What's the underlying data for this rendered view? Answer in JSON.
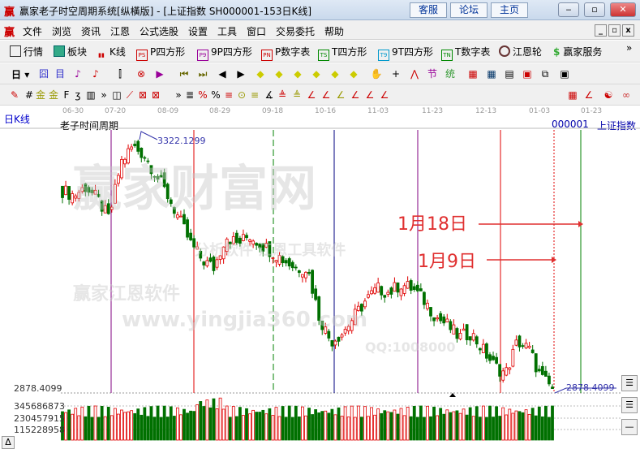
{
  "window": {
    "title": "赢家老子时空周期系统[纵橫版] - [上证指数  SH000001-153日K线]",
    "logo": "赢",
    "links": [
      "客服",
      "论坛",
      "主页"
    ],
    "controls": [
      "‒",
      "▫",
      "✕"
    ]
  },
  "menu": {
    "items": [
      "文件",
      "浏览",
      "资讯",
      "江恩",
      "公式选股",
      "设置",
      "工具",
      "窗口",
      "交易委托",
      "帮助"
    ]
  },
  "toolbar1": {
    "items": [
      {
        "label": "行情",
        "icon": "grid-icon"
      },
      {
        "label": "板块",
        "icon": "blocks-icon"
      },
      {
        "label": "K线",
        "icon": "kline-icon"
      },
      {
        "label": "P四方形",
        "icon": "PS"
      },
      {
        "label": "9P四方形",
        "icon": "P9"
      },
      {
        "label": "P数字表",
        "icon": "PN"
      },
      {
        "label": "T四方形",
        "icon": "TS"
      },
      {
        "label": "9T四方形",
        "icon": "T9"
      },
      {
        "label": "T数字表",
        "icon": "TN"
      },
      {
        "label": "江恩轮",
        "icon": "wheel-icon"
      },
      {
        "label": "赢家服务",
        "icon": "dollar-icon"
      }
    ],
    "more": "»"
  },
  "toolbar2": {
    "period": "日"
  },
  "axis": {
    "dates": [
      "06-30",
      "07-20",
      "08-09",
      "08-29",
      "09-18",
      "10-16",
      "11-03",
      "11-23",
      "12-13",
      "01-03",
      "01-23"
    ]
  },
  "chart": {
    "period_label": "日K线",
    "indicator": "老子时间周期",
    "code": "000001",
    "name": "上证指数",
    "high_label": "3322.1299",
    "low_label": "2878.4099",
    "price_axis": "2878.4099",
    "volume_axis": [
      "345686873",
      "230457915",
      "115228958"
    ],
    "price_range": [
      2878.4099,
      3322.1299
    ],
    "closes": [
      3231,
      3223,
      3238,
      3216,
      3180,
      3281,
      3310,
      3296,
      3260,
      3223,
      3180,
      3136,
      3107,
      3093,
      3151,
      3136,
      3151,
      3136,
      3122,
      3107,
      3093,
      3093,
      3006,
      2962,
      2977,
      3006,
      3035,
      3056,
      3049,
      3064,
      3056,
      3035,
      3006,
      2991,
      2969,
      2977,
      2948,
      2919,
      2904,
      2962,
      2948,
      2897,
      2878
    ],
    "cycle_line_colors": [
      "#800080",
      "#e00000",
      "#008000",
      "#000080",
      "#800080",
      "#e00000",
      "#e00000",
      "#008000"
    ],
    "up_color": "#e00000",
    "down_color": "#007000"
  },
  "annotations": [
    {
      "text": "1月18日"
    },
    {
      "text": "1月9日"
    }
  ],
  "watermark": {
    "text": [
      "赢家财富网",
      "赢家江恩软件",
      "www.yingjia360.com",
      "QQ:1008000",
      "分析软件 江恩工具软件"
    ]
  }
}
